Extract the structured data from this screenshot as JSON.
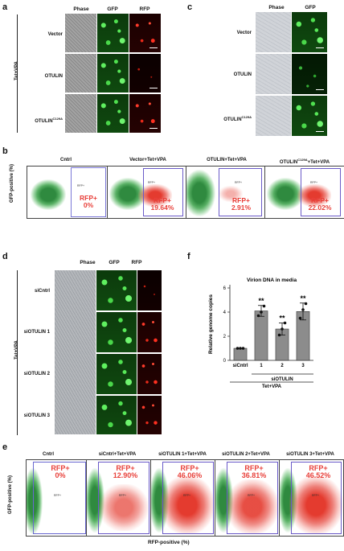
{
  "panels": {
    "a": {
      "label": "a",
      "columns": [
        "Phase",
        "GFP",
        "RFP"
      ],
      "rows": [
        "Vector",
        "OTULIN",
        "OTULIN"
      ],
      "row_superscripts": [
        "",
        "",
        "C129A"
      ],
      "group_label": "Tet+VPA"
    },
    "c": {
      "label": "c",
      "columns": [
        "Phase",
        "GFP"
      ],
      "rows": [
        "Vector",
        "OTULIN",
        "OTULIN"
      ],
      "row_superscripts": [
        "",
        "",
        "C129A"
      ]
    },
    "b": {
      "label": "b",
      "y_axis": "GFP-positive (%)",
      "plots": [
        {
          "title": "Cntrl",
          "gate_label": "RFP+",
          "name": "RFP+",
          "pct": "0%"
        },
        {
          "title": "Vector+Tet+VPA",
          "gate_label": "RFP+",
          "name": "RFP+",
          "pct": "19.64%"
        },
        {
          "title": "OTULIN+Tet+VPA",
          "gate_label": "RFP+",
          "name": "RFP+",
          "pct": "2.91%"
        },
        {
          "title_main": "OTULIN",
          "title_sup": "C129A",
          "title_tail": "+Tet+VPA",
          "gate_label": "RFP+",
          "name": "RFP+",
          "pct": "22.02%"
        }
      ]
    },
    "d": {
      "label": "d",
      "columns": [
        "Phase",
        "GFP",
        "RFP"
      ],
      "rows": [
        "siCntrl",
        "siOTULIN 1",
        "siOTULIN 2",
        "siOTULIN 3"
      ],
      "group_label": "Tet+VPA"
    },
    "f": {
      "label": "f",
      "stars": [
        "**",
        "**",
        "**"
      ],
      "group_label": "siOTULIN",
      "treatment": "Tet+VPA"
    },
    "e": {
      "label": "e",
      "y_axis": "GFP-positive (%)",
      "x_axis": "RFP-positive (%)",
      "plots": [
        {
          "title": "Cntrl",
          "gate_label": "RFP+",
          "name": "RFP+",
          "pct": "0%"
        },
        {
          "title": "siCntrl+Tet+VPA",
          "gate_label": "RFP+",
          "name": "RFP+",
          "pct": "12.90%"
        },
        {
          "title": "siOTULIN 1+Tet+VPA",
          "gate_label": "RFP+",
          "name": "RFP+",
          "pct": "46.06%"
        },
        {
          "title": "siOTULIN 2+Tet+VPA",
          "gate_label": "RFP+",
          "name": "RFP+",
          "pct": "36.81%"
        },
        {
          "title": "siOTULIN 3+Tet+VPA",
          "gate_label": "RFP+",
          "name": "RFP+",
          "pct": "46.52%"
        }
      ]
    }
  },
  "chart_data": {
    "type": "bar",
    "title": "Virion DNA in media",
    "ylabel": "Relative genome copies",
    "categories": [
      "siCntrl",
      "1",
      "2",
      "3"
    ],
    "values": [
      1.0,
      4.1,
      2.6,
      4.05
    ],
    "errors": [
      0.0,
      0.45,
      0.5,
      0.7
    ],
    "points": [
      [
        1.0,
        1.0,
        1.0
      ],
      [
        3.7,
        4.0,
        4.5
      ],
      [
        2.1,
        2.6,
        3.1
      ],
      [
        3.5,
        4.2,
        4.7
      ]
    ],
    "ylim": [
      0,
      6
    ],
    "yticks": [
      0,
      2,
      4,
      6
    ],
    "bar_color": "#8c8c8c"
  }
}
